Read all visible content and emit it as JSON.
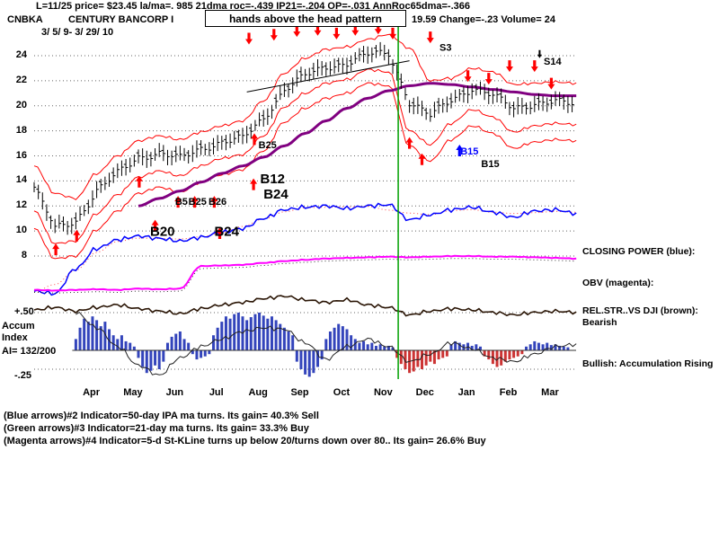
{
  "header": {
    "line1": "L=11/25  price= $23.45  la/ma=. 985 21dma roc=-.439 IP21=-.204 OP=-.031 AnnRoc65dma=-.366",
    "ticker": "CNBKA",
    "company": "CENTURY BANCORP I",
    "annotation": "hands above the head pattern",
    "quote": "19.59  Change=-.23  Volume= 24",
    "date_range": "3/ 5/ 9- 3/ 29/ 10"
  },
  "left_axis": {
    "accum_top": "+.50",
    "accum_label1": "Accum",
    "accum_label2": "Index",
    "accum_value": "AI= 132/200",
    "accum_bottom": "-.25"
  },
  "right_labels": {
    "closing_power": "CLOSING POWER (blue):",
    "obv": "OBV (magenta):",
    "rel_str": "REL.STR..VS DJI (brown):",
    "rel_str_status": "Bearish",
    "accum_status": "Bullish: Accumulation Rising"
  },
  "footer": {
    "line1": "(Blue arrows)#2 Indicator=50-day IPA ma turns. Its gain= 40.3% Sell",
    "line2": "(Green arrows)#3 Indicator=21-day ma turns. Its gain= 33.3% Buy",
    "line3": "(Magenta arrows)#4 Indicator=5-d St-KLine turns up below 20/turns down over 80.. Its gain= 26.6% Buy"
  },
  "chart_data": {
    "type": "line",
    "subtype": "stock-ohlc-bars-with-band-overlays-and-indicator-histogram",
    "title": "CNBKA CENTURY BANCORP I",
    "date_span": "3/5/09 - 3/29/10",
    "months": [
      "Apr",
      "May",
      "Jun",
      "Jul",
      "Aug",
      "Sep",
      "Oct",
      "Nov",
      "Dec",
      "Jan",
      "Feb",
      "Mar"
    ],
    "price_ticks": [
      24,
      22,
      20,
      18,
      16,
      14,
      12,
      10,
      8
    ],
    "ylim": [
      8,
      26.5
    ],
    "accum_ylim": [
      -0.25,
      0.5
    ],
    "grid": "dotted-horizontal",
    "legend_position": "right-margin",
    "event_line_t": 8.73,
    "trendline": {
      "t1": 5.1,
      "p1": 21.1,
      "t2": 9.0,
      "p2": 23.6
    },
    "price_close": [
      13.5,
      10.2,
      10.8,
      13.2,
      14.6,
      15.9,
      16.2,
      15.8,
      16.6,
      17.1,
      17.4,
      19.0,
      21.3,
      22.4,
      23.1,
      23.4,
      24.1,
      24.2,
      20.3,
      19.2,
      20.5,
      21.4,
      20.8,
      19.8,
      20.2,
      20.3,
      20.1
    ],
    "upper_band": [
      15.2,
      13.0,
      12.6,
      14.6,
      16.0,
      17.2,
      17.6,
      17.3,
      17.9,
      18.4,
      18.8,
      20.4,
      22.6,
      23.8,
      24.5,
      24.7,
      25.3,
      25.7,
      24.6,
      22.0,
      22.2,
      23.0,
      22.7,
      21.7,
      21.8,
      21.9,
      21.8
    ],
    "lower_band": [
      11.6,
      9.0,
      9.2,
      11.4,
      12.9,
      14.3,
      14.8,
      14.4,
      15.2,
      15.8,
      16.1,
      17.6,
      19.9,
      21.0,
      21.8,
      22.1,
      22.9,
      22.7,
      18.0,
      16.9,
      18.6,
      19.7,
      19.1,
      17.9,
      18.4,
      18.6,
      18.5
    ],
    "lower_band2": [
      10.2,
      7.8,
      8.0,
      10.1,
      11.6,
      13.0,
      13.5,
      13.1,
      13.9,
      14.5,
      14.9,
      16.4,
      18.7,
      19.8,
      20.6,
      21.0,
      21.8,
      21.6,
      16.8,
      15.6,
      17.3,
      18.4,
      17.8,
      16.6,
      17.1,
      17.3,
      17.2
    ],
    "ma65": [
      null,
      null,
      null,
      null,
      null,
      12.0,
      12.6,
      13.2,
      13.9,
      14.6,
      15.2,
      15.9,
      16.8,
      17.8,
      18.8,
      19.8,
      20.6,
      21.2,
      21.6,
      21.8,
      21.7,
      21.5,
      21.3,
      21.1,
      20.9,
      20.8,
      20.8
    ],
    "closing_power": [
      5.2,
      5.0,
      7.0,
      8.6,
      9.3,
      9.6,
      9.4,
      9.2,
      9.5,
      9.9,
      10.2,
      11.0,
      11.7,
      11.9,
      12.0,
      11.8,
      12.0,
      12.1,
      10.9,
      11.3,
      11.7,
      11.9,
      11.5,
      11.1,
      11.6,
      11.7,
      11.4
    ],
    "obv": [
      5.3,
      5.25,
      5.3,
      5.35,
      5.3,
      5.4,
      5.35,
      5.4,
      7.2,
      7.25,
      7.3,
      7.45,
      7.6,
      7.7,
      7.8,
      7.85,
      7.9,
      7.95,
      7.9,
      7.95,
      8.0,
      8.0,
      7.95,
      7.95,
      7.9,
      7.85,
      7.8
    ],
    "rel_str": [
      3.7,
      3.9,
      3.6,
      3.9,
      4.1,
      3.8,
      3.6,
      3.4,
      3.8,
      4.1,
      4.3,
      4.6,
      4.8,
      4.5,
      4.3,
      4.5,
      4.1,
      3.9,
      3.3,
      3.6,
      3.8,
      3.7,
      3.5,
      3.3,
      3.5,
      3.6,
      3.5
    ],
    "accum_ma": {
      "start_t": 1.0,
      "step_t": 0.5,
      "values": [
        0.5,
        0.3,
        0.05,
        -0.2,
        -0.33,
        -0.1,
        0.05,
        0.15,
        0.25,
        0.3,
        0.28,
        0.1,
        -0.12,
        0.05,
        0.15,
        0.05,
        -0.15,
        -0.05,
        0.1,
        0.02,
        -0.1,
        -0.15,
        -0.05,
        0.05,
        0.08
      ]
    },
    "accum": {
      "start_t": 1.0,
      "step_t": 0.1,
      "values": [
        0.15,
        0.3,
        0.42,
        0.38,
        0.45,
        0.4,
        0.32,
        0.38,
        0.28,
        0.2,
        0.15,
        0.2,
        0.12,
        0.1,
        0.05,
        -0.1,
        -0.22,
        -0.3,
        -0.27,
        -0.2,
        -0.25,
        -0.15,
        0.1,
        0.18,
        0.22,
        0.25,
        0.15,
        0.1,
        -0.05,
        -0.12,
        -0.1,
        -0.08,
        -0.05,
        0.2,
        0.3,
        0.38,
        0.45,
        0.42,
        0.48,
        0.5,
        0.45,
        0.4,
        0.44,
        0.48,
        0.5,
        0.46,
        0.42,
        0.45,
        0.4,
        0.35,
        0.3,
        0.25,
        0.2,
        -0.15,
        -0.25,
        -0.32,
        -0.35,
        -0.3,
        -0.22,
        -0.12,
        0.15,
        0.25,
        0.3,
        0.35,
        0.32,
        0.28,
        0.2,
        0.15,
        0.1,
        0.12,
        0.08,
        0.1,
        0.06,
        0.08,
        0.05,
        0.06,
        0.04,
        -0.1,
        -0.18,
        -0.25,
        -0.3,
        -0.28,
        -0.22,
        -0.25,
        -0.2,
        -0.15,
        -0.18,
        -0.12,
        -0.1,
        -0.08,
        0.08,
        0.12,
        0.1,
        0.08,
        0.1,
        0.06,
        0.08,
        0.05,
        -0.08,
        -0.12,
        -0.18,
        -0.22,
        -0.2,
        -0.15,
        -0.12,
        -0.1,
        -0.08,
        -0.05,
        0.05,
        0.08,
        0.12,
        0.1,
        0.08,
        0.1,
        0.07,
        0.08,
        0.06,
        0.05,
        0.04
      ]
    },
    "arrows": [
      {
        "t": 0.52,
        "p": 9.0,
        "dir": "up"
      },
      {
        "t": 1.02,
        "p": 10.1,
        "dir": "up"
      },
      {
        "t": 2.52,
        "p": 14.4,
        "dir": "up"
      },
      {
        "t": 2.9,
        "p": 10.9,
        "dir": "up"
      },
      {
        "t": 3.45,
        "p": 12.8,
        "dir": "up"
      },
      {
        "t": 3.85,
        "p": 12.8,
        "dir": "up"
      },
      {
        "t": 4.32,
        "p": 12.8,
        "dir": "up"
      },
      {
        "t": 4.45,
        "p": 10.3,
        "dir": "up"
      },
      {
        "t": 5.28,
        "p": 17.8,
        "dir": "up"
      },
      {
        "t": 5.26,
        "p": 14.2,
        "dir": "up"
      },
      {
        "t": 5.15,
        "p": 24.9,
        "dir": "down"
      },
      {
        "t": 5.75,
        "p": 25.2,
        "dir": "down"
      },
      {
        "t": 6.3,
        "p": 25.5,
        "dir": "down"
      },
      {
        "t": 6.8,
        "p": 25.6,
        "dir": "down"
      },
      {
        "t": 7.25,
        "p": 25.3,
        "dir": "down"
      },
      {
        "t": 7.7,
        "p": 25.6,
        "dir": "down"
      },
      {
        "t": 8.25,
        "p": 25.7,
        "dir": "down"
      },
      {
        "t": 8.6,
        "p": 25.3,
        "dir": "down"
      },
      {
        "t": 9.5,
        "p": 25.0,
        "dir": "down"
      },
      {
        "t": 9.0,
        "p": 17.5,
        "dir": "up"
      },
      {
        "t": 9.3,
        "p": 16.2,
        "dir": "up"
      },
      {
        "t": 10.2,
        "p": 16.9,
        "dir": "up",
        "color": "#0000ff"
      },
      {
        "t": 10.4,
        "p": 21.9,
        "dir": "down"
      },
      {
        "t": 10.9,
        "p": 21.7,
        "dir": "down"
      },
      {
        "t": 11.4,
        "p": 22.7,
        "dir": "down"
      },
      {
        "t": 12.0,
        "p": 22.7,
        "dir": "down"
      },
      {
        "t": 12.4,
        "p": 21.3,
        "dir": "down"
      },
      {
        "t": 12.12,
        "p": 23.8,
        "dir": "down",
        "color": "#000000",
        "thin": true
      }
    ],
    "trade_labels": [
      {
        "text": "B25",
        "t": 5.38,
        "p": 16.6,
        "size": 11,
        "color": "#000000"
      },
      {
        "text": "B12",
        "t": 5.42,
        "p": 13.8,
        "size": 15,
        "color": "#000000"
      },
      {
        "text": "B24",
        "t": 5.5,
        "p": 12.6,
        "size": 15,
        "color": "#000000"
      },
      {
        "text": "B5",
        "t": 3.38,
        "p": 12.1,
        "size": 11,
        "color": "#000000"
      },
      {
        "text": "B25",
        "t": 3.7,
        "p": 12.1,
        "size": 11,
        "color": "#000000"
      },
      {
        "text": "B26",
        "t": 4.18,
        "p": 12.1,
        "size": 11,
        "color": "#000000"
      },
      {
        "text": "B20",
        "t": 2.78,
        "p": 9.6,
        "size": 15,
        "color": "#000000"
      },
      {
        "text": "B24",
        "t": 4.32,
        "p": 9.6,
        "size": 15,
        "color": "#000000"
      },
      {
        "text": "B15",
        "t": 10.22,
        "p": 16.1,
        "size": 11,
        "color": "#0000ff"
      },
      {
        "text": "B15",
        "t": 10.72,
        "p": 15.1,
        "size": 11,
        "color": "#000000"
      },
      {
        "text": "S3",
        "t": 9.72,
        "p": 24.4,
        "size": 11,
        "color": "#000000"
      },
      {
        "text": "S14",
        "t": 12.22,
        "p": 23.3,
        "size": 11,
        "color": "#000000"
      }
    ],
    "colors": {
      "price": "#000000",
      "band": "#ff0000",
      "ma": "#800080",
      "closing_power": "#0000ff",
      "cp_dotted": "#ff4444",
      "obv": "#ff00ff",
      "rel_str": "#2a1505",
      "accum_pos": "#3344bb",
      "accum_neg": "#cc3333",
      "event_line": "#00a000",
      "arrow": "#ff0000",
      "grid": "#666666"
    }
  }
}
